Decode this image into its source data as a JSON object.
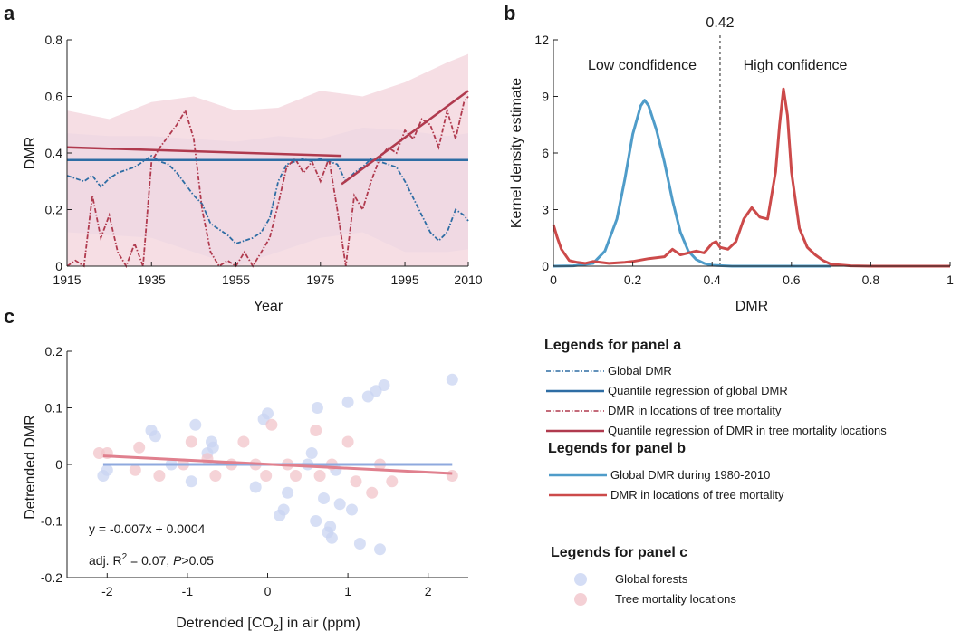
{
  "chart_data": [
    {
      "panel": "a",
      "type": "line",
      "xlabel": "Year",
      "ylabel": "DMR",
      "xlim": [
        1915,
        2010
      ],
      "ylim": [
        0,
        0.8
      ],
      "xticks": [
        1915,
        1935,
        1955,
        1975,
        1995,
        2010
      ],
      "yticks": [
        0,
        0.2,
        0.4,
        0.6,
        0.8
      ],
      "tick_labels_x": [
        "1915",
        "1935",
        "1955",
        "1975",
        "1995",
        "2010"
      ],
      "tick_labels_y": [
        "0",
        "0.2",
        "0.4",
        "0.6",
        "0.8"
      ],
      "colors": {
        "global": "#2e6da4",
        "mortality": "#b03a4e",
        "global_band": "#dfe6f7",
        "mortality_band": "#f3d3db"
      },
      "global_dmr": {
        "x": [
          1915,
          1917,
          1919,
          1921,
          1923,
          1925,
          1927,
          1929,
          1931,
          1933,
          1935,
          1937,
          1939,
          1941,
          1943,
          1945,
          1947,
          1949,
          1951,
          1953,
          1955,
          1957,
          1959,
          1961,
          1963,
          1965,
          1967,
          1969,
          1971,
          1973,
          1975,
          1977,
          1979,
          1981,
          1983,
          1985,
          1987,
          1989,
          1991,
          1993,
          1995,
          1997,
          1999,
          2001,
          2003,
          2005,
          2007,
          2009,
          2010
        ],
        "y": [
          0.32,
          0.31,
          0.3,
          0.32,
          0.28,
          0.31,
          0.33,
          0.34,
          0.35,
          0.37,
          0.39,
          0.37,
          0.36,
          0.33,
          0.29,
          0.25,
          0.22,
          0.15,
          0.13,
          0.11,
          0.08,
          0.09,
          0.1,
          0.12,
          0.17,
          0.3,
          0.36,
          0.37,
          0.38,
          0.37,
          0.38,
          0.37,
          0.36,
          0.3,
          0.33,
          0.35,
          0.38,
          0.37,
          0.36,
          0.35,
          0.3,
          0.24,
          0.18,
          0.12,
          0.09,
          0.12,
          0.2,
          0.18,
          0.16
        ]
      },
      "global_band": {
        "x": [
          1915,
          1925,
          1935,
          1945,
          1955,
          1965,
          1975,
          1985,
          1995,
          2005,
          2010
        ],
        "upper": [
          0.47,
          0.46,
          0.46,
          0.45,
          0.44,
          0.46,
          0.45,
          0.49,
          0.48,
          0.46,
          0.47
        ],
        "lower": [
          0.12,
          0.11,
          0.1,
          0.05,
          0.0,
          0.05,
          0.1,
          0.12,
          0.05,
          0.05,
          0.06
        ]
      },
      "global_quantile_regression": {
        "x": [
          1915,
          2010
        ],
        "y": [
          0.375,
          0.375
        ]
      },
      "mortality_dmr": {
        "x": [
          1915,
          1917,
          1919,
          1921,
          1923,
          1925,
          1927,
          1929,
          1931,
          1933,
          1935,
          1937,
          1939,
          1941,
          1943,
          1945,
          1947,
          1949,
          1951,
          1953,
          1955,
          1957,
          1959,
          1961,
          1963,
          1965,
          1967,
          1969,
          1971,
          1973,
          1975,
          1977,
          1979,
          1981,
          1983,
          1985,
          1987,
          1989,
          1991,
          1993,
          1995,
          1997,
          1999,
          2001,
          2003,
          2005,
          2007,
          2009,
          2010
        ],
        "y": [
          0.0,
          0.02,
          0.0,
          0.25,
          0.1,
          0.18,
          0.05,
          0.0,
          0.08,
          0.0,
          0.37,
          0.42,
          0.46,
          0.5,
          0.55,
          0.45,
          0.2,
          0.05,
          0.0,
          0.02,
          0.0,
          0.05,
          0.0,
          0.05,
          0.1,
          0.22,
          0.35,
          0.38,
          0.33,
          0.37,
          0.3,
          0.38,
          0.2,
          0.0,
          0.25,
          0.2,
          0.3,
          0.38,
          0.42,
          0.4,
          0.48,
          0.45,
          0.52,
          0.5,
          0.42,
          0.55,
          0.45,
          0.58,
          0.6
        ]
      },
      "mortality_band": {
        "x": [
          1915,
          1925,
          1935,
          1945,
          1955,
          1965,
          1975,
          1985,
          1995,
          2005,
          2010
        ],
        "upper": [
          0.55,
          0.52,
          0.58,
          0.6,
          0.55,
          0.56,
          0.62,
          0.6,
          0.65,
          0.72,
          0.75
        ],
        "lower": [
          0.0,
          0.0,
          0.0,
          0.0,
          0.0,
          0.0,
          0.0,
          0.0,
          0.0,
          0.0,
          0.0
        ]
      },
      "mortality_quantile_regression_pre1980": {
        "x": [
          1915,
          1980
        ],
        "y": [
          0.42,
          0.39
        ]
      },
      "mortality_quantile_regression_post1980": {
        "x": [
          1980,
          2010
        ],
        "y": [
          0.29,
          0.62
        ]
      }
    },
    {
      "panel": "b",
      "type": "line",
      "xlabel": "DMR",
      "ylabel": "Kernel density estimate",
      "xlim": [
        0,
        1
      ],
      "ylim": [
        0,
        12
      ],
      "xticks": [
        0,
        0.2,
        0.4,
        0.6,
        0.8,
        1
      ],
      "yticks": [
        0,
        3,
        6,
        9,
        12
      ],
      "tick_labels_x": [
        "0",
        "0.2",
        "0.4",
        "0.6",
        "0.8",
        "1"
      ],
      "tick_labels_y": [
        "0",
        "3",
        "6",
        "9",
        "12"
      ],
      "threshold": 0.42,
      "threshold_label": "0.42",
      "annotations": {
        "low": "Low condfidence",
        "high": "High confidence"
      },
      "colors": {
        "global": "#4f9cc9",
        "mortality": "#cc4a4a",
        "threshold": "#444444"
      },
      "global_kde": {
        "x": [
          0,
          0.05,
          0.1,
          0.13,
          0.16,
          0.18,
          0.2,
          0.22,
          0.23,
          0.24,
          0.26,
          0.28,
          0.3,
          0.32,
          0.34,
          0.36,
          0.38,
          0.4,
          0.45,
          0.5,
          0.6,
          0.7
        ],
        "y": [
          0,
          0.02,
          0.15,
          0.8,
          2.5,
          4.6,
          7.0,
          8.5,
          8.8,
          8.5,
          7.2,
          5.5,
          3.5,
          1.8,
          0.8,
          0.35,
          0.15,
          0.05,
          0.0,
          0.0,
          0.0,
          0.0
        ]
      },
      "mortality_kde": {
        "x": [
          0,
          0.01,
          0.02,
          0.04,
          0.06,
          0.08,
          0.1,
          0.14,
          0.18,
          0.2,
          0.24,
          0.28,
          0.3,
          0.32,
          0.34,
          0.36,
          0.38,
          0.4,
          0.41,
          0.42,
          0.44,
          0.46,
          0.48,
          0.5,
          0.52,
          0.54,
          0.56,
          0.57,
          0.58,
          0.59,
          0.6,
          0.62,
          0.64,
          0.66,
          0.68,
          0.7,
          0.75,
          0.8,
          0.9,
          1.0
        ],
        "y": [
          2.2,
          1.5,
          0.9,
          0.3,
          0.2,
          0.15,
          0.25,
          0.15,
          0.2,
          0.25,
          0.4,
          0.5,
          0.9,
          0.6,
          0.7,
          0.8,
          0.7,
          1.2,
          1.3,
          1.0,
          0.9,
          1.3,
          2.5,
          3.1,
          2.6,
          2.5,
          5.0,
          7.5,
          9.4,
          8.0,
          5.0,
          2.0,
          1.0,
          0.6,
          0.3,
          0.1,
          0.02,
          0.0,
          0.0,
          0.0
        ]
      }
    },
    {
      "panel": "c",
      "type": "scatter",
      "xlabel_prefix": "Detrended [CO",
      "xlabel_sub": "2",
      "xlabel_suffix": "] in air (ppm)",
      "ylabel": "Detrended DMR",
      "xlim": [
        -2.5,
        2.5
      ],
      "ylim": [
        -0.2,
        0.2
      ],
      "xticks": [
        -2,
        -1,
        0,
        1,
        2
      ],
      "yticks": [
        -0.2,
        -0.1,
        0,
        0.1,
        0.2
      ],
      "tick_labels_x": [
        "-2",
        "-1",
        "0",
        "1",
        "2"
      ],
      "tick_labels_y": [
        "-0.2",
        "-0.1",
        "0",
        "0.1",
        "0.2"
      ],
      "equation": "y = -0.007x + 0.0004",
      "stats_prefix": "adj. R",
      "stats_sup": "2",
      "stats_mid": " = 0.07, ",
      "stats_p": "P",
      "stats_suffix": ">0.05",
      "colors": {
        "global": "#c9d4f2",
        "mortality": "#f1c4ca",
        "global_fit": "#8fa9de",
        "mortality_fit": "#e0808e"
      },
      "series": [
        {
          "name": "Global forests",
          "points": [
            [
              -2.05,
              -0.02
            ],
            [
              -2.0,
              -0.01
            ],
            [
              -1.45,
              0.06
            ],
            [
              -1.4,
              0.05
            ],
            [
              -1.2,
              0.0
            ],
            [
              -0.95,
              -0.03
            ],
            [
              -0.9,
              0.07
            ],
            [
              -0.75,
              0.02
            ],
            [
              -0.7,
              0.04
            ],
            [
              -0.68,
              0.03
            ],
            [
              -0.05,
              0.08
            ],
            [
              0.0,
              0.09
            ],
            [
              -0.15,
              -0.04
            ],
            [
              0.15,
              -0.09
            ],
            [
              0.2,
              -0.08
            ],
            [
              0.25,
              -0.05
            ],
            [
              0.5,
              0.0
            ],
            [
              0.55,
              0.02
            ],
            [
              0.6,
              -0.1
            ],
            [
              0.62,
              0.1
            ],
            [
              0.7,
              -0.06
            ],
            [
              0.75,
              -0.12
            ],
            [
              0.78,
              -0.11
            ],
            [
              0.8,
              -0.13
            ],
            [
              0.85,
              -0.01
            ],
            [
              0.9,
              -0.07
            ],
            [
              1.0,
              0.11
            ],
            [
              1.05,
              -0.08
            ],
            [
              1.15,
              -0.14
            ],
            [
              1.25,
              0.12
            ],
            [
              1.35,
              0.13
            ],
            [
              1.4,
              -0.15
            ],
            [
              1.45,
              0.14
            ],
            [
              2.3,
              0.15
            ]
          ]
        },
        {
          "name": "Tree mortality locations",
          "points": [
            [
              -2.1,
              0.02
            ],
            [
              -2.0,
              0.02
            ],
            [
              -1.65,
              -0.01
            ],
            [
              -1.6,
              0.03
            ],
            [
              -1.35,
              -0.02
            ],
            [
              -1.05,
              0.0
            ],
            [
              -0.95,
              0.04
            ],
            [
              -0.75,
              0.01
            ],
            [
              -0.65,
              -0.02
            ],
            [
              -0.45,
              0.0
            ],
            [
              -0.3,
              0.04
            ],
            [
              -0.15,
              0.0
            ],
            [
              -0.02,
              -0.02
            ],
            [
              0.05,
              0.07
            ],
            [
              0.25,
              0.0
            ],
            [
              0.35,
              -0.02
            ],
            [
              0.6,
              0.06
            ],
            [
              0.65,
              -0.02
            ],
            [
              0.8,
              0.0
            ],
            [
              1.0,
              0.04
            ],
            [
              1.1,
              -0.03
            ],
            [
              1.3,
              -0.05
            ],
            [
              1.4,
              0.0
            ],
            [
              1.55,
              -0.03
            ],
            [
              2.3,
              -0.02
            ]
          ]
        }
      ],
      "global_fit": {
        "x": [
          -2.05,
          2.3
        ],
        "y": [
          0.0,
          0.0
        ]
      },
      "mortality_fit": {
        "x": [
          -2.05,
          2.3
        ],
        "y": [
          0.015,
          -0.016
        ]
      }
    }
  ],
  "panels": {
    "a": "a",
    "b": "b",
    "c": "c"
  },
  "legend": {
    "panel_a": {
      "title": "Legends for panel a",
      "items": [
        {
          "label": "Global DMR",
          "style": "dashdot",
          "color": "#2e6da4"
        },
        {
          "label": "Quantile regression of global DMR",
          "style": "solid",
          "color": "#2e6da4"
        },
        {
          "label": "DMR in locations of tree mortality",
          "style": "dashdot",
          "color": "#b03a4e"
        },
        {
          "label": "Quantile regression of DMR in tree mortality locations",
          "style": "solid",
          "color": "#b03a4e"
        }
      ]
    },
    "panel_b": {
      "title": "Legends for panel b",
      "items": [
        {
          "label": "Global DMR during 1980-2010",
          "style": "solid",
          "color": "#4f9cc9"
        },
        {
          "label": "DMR in locations of tree mortality",
          "style": "solid",
          "color": "#cc4a4a"
        }
      ]
    },
    "panel_c": {
      "title": "Legends for panel c",
      "items": [
        {
          "label": "Global forests",
          "style": "dot",
          "color": "#c9d4f2"
        },
        {
          "label": "Tree mortality locations",
          "style": "dot",
          "color": "#f1c4ca"
        }
      ]
    }
  }
}
